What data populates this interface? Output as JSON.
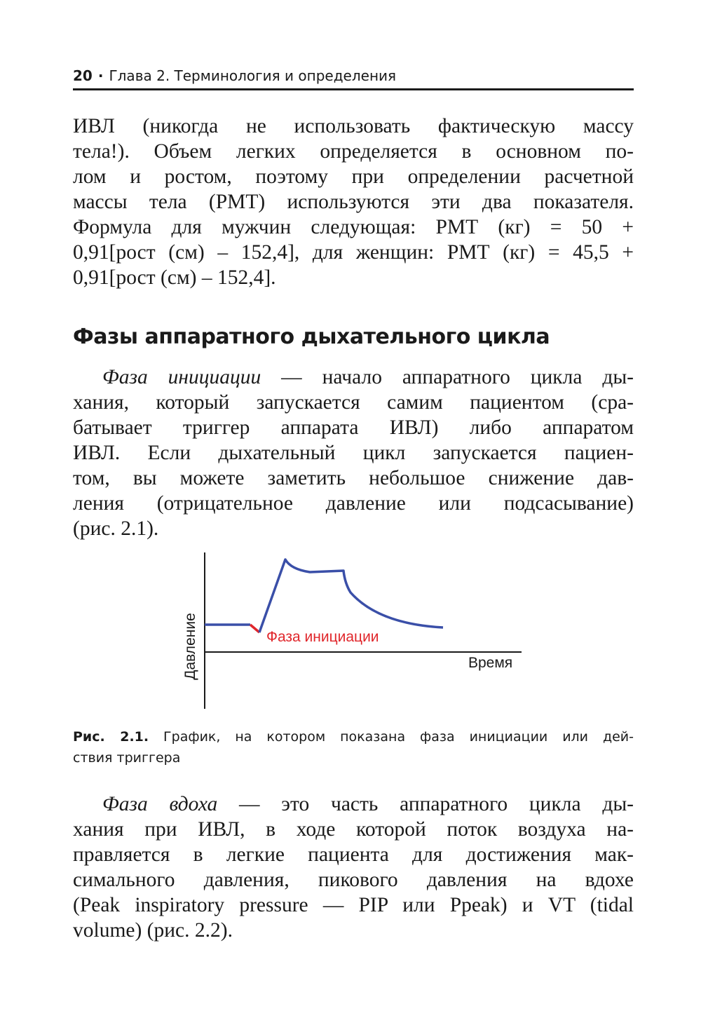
{
  "header": {
    "page_number": "20",
    "separator": "·",
    "chapter": "Глава 2. Терминология и определения"
  },
  "paragraph1": {
    "lines": [
      "ИВЛ (никогда не использовать фактическую массу",
      "тела!). Объем легких определяется в основном по-",
      "лом и ростом, поэтому при определении расчетной",
      "массы тела (РМТ) используются эти два показателя.",
      "Формула для мужчин следующая: РМТ (кг) = 50 +",
      "0,91[рост (см) – 152,4], для женщин: РМТ (кг) = 45,5 +",
      "0,91[рост (см) – 152,4]."
    ]
  },
  "section_heading": "Фазы аппаратного дыхательного цикла",
  "paragraph2": {
    "term": "Фаза инициации",
    "first_line_rest": " — начало аппаратного цикла ды-",
    "lines": [
      "хания, который запускается самим пациентом (сра-",
      "батывает триггер аппарата ИВЛ) либо аппаратом",
      "ИВЛ. Если дыхательный цикл запускается пациен-",
      "том, вы можете заметить небольшое снижение дав-",
      "ления (отрицательное давление или подсасывание)",
      "(рис. 2.1)."
    ]
  },
  "figure": {
    "y_axis_label": "Давление",
    "x_axis_label": "Время",
    "annotation": "Фаза инициации",
    "colors": {
      "curve": "#3a4fa8",
      "annotation": "#e0262b",
      "axes": "#1a1a1a"
    },
    "caption_label": "Рис. 2.1.",
    "caption_line1": " График, на котором показана фаза инициации или дей-",
    "caption_line2": "ствия триггера"
  },
  "paragraph3": {
    "term": "Фаза вдоха",
    "first_line_rest": " — это часть аппаратного цикла ды-",
    "lines": [
      "хания при ИВЛ, в ходе которой поток воздуха на-",
      "правляется в легкие пациента для достижения мак-",
      "симального давления, пикового давления на вдохе",
      "(Peak inspiratory pressure — PIP или Ppeak) и VT (tidal",
      "volume) (рис. 2.2)."
    ]
  }
}
